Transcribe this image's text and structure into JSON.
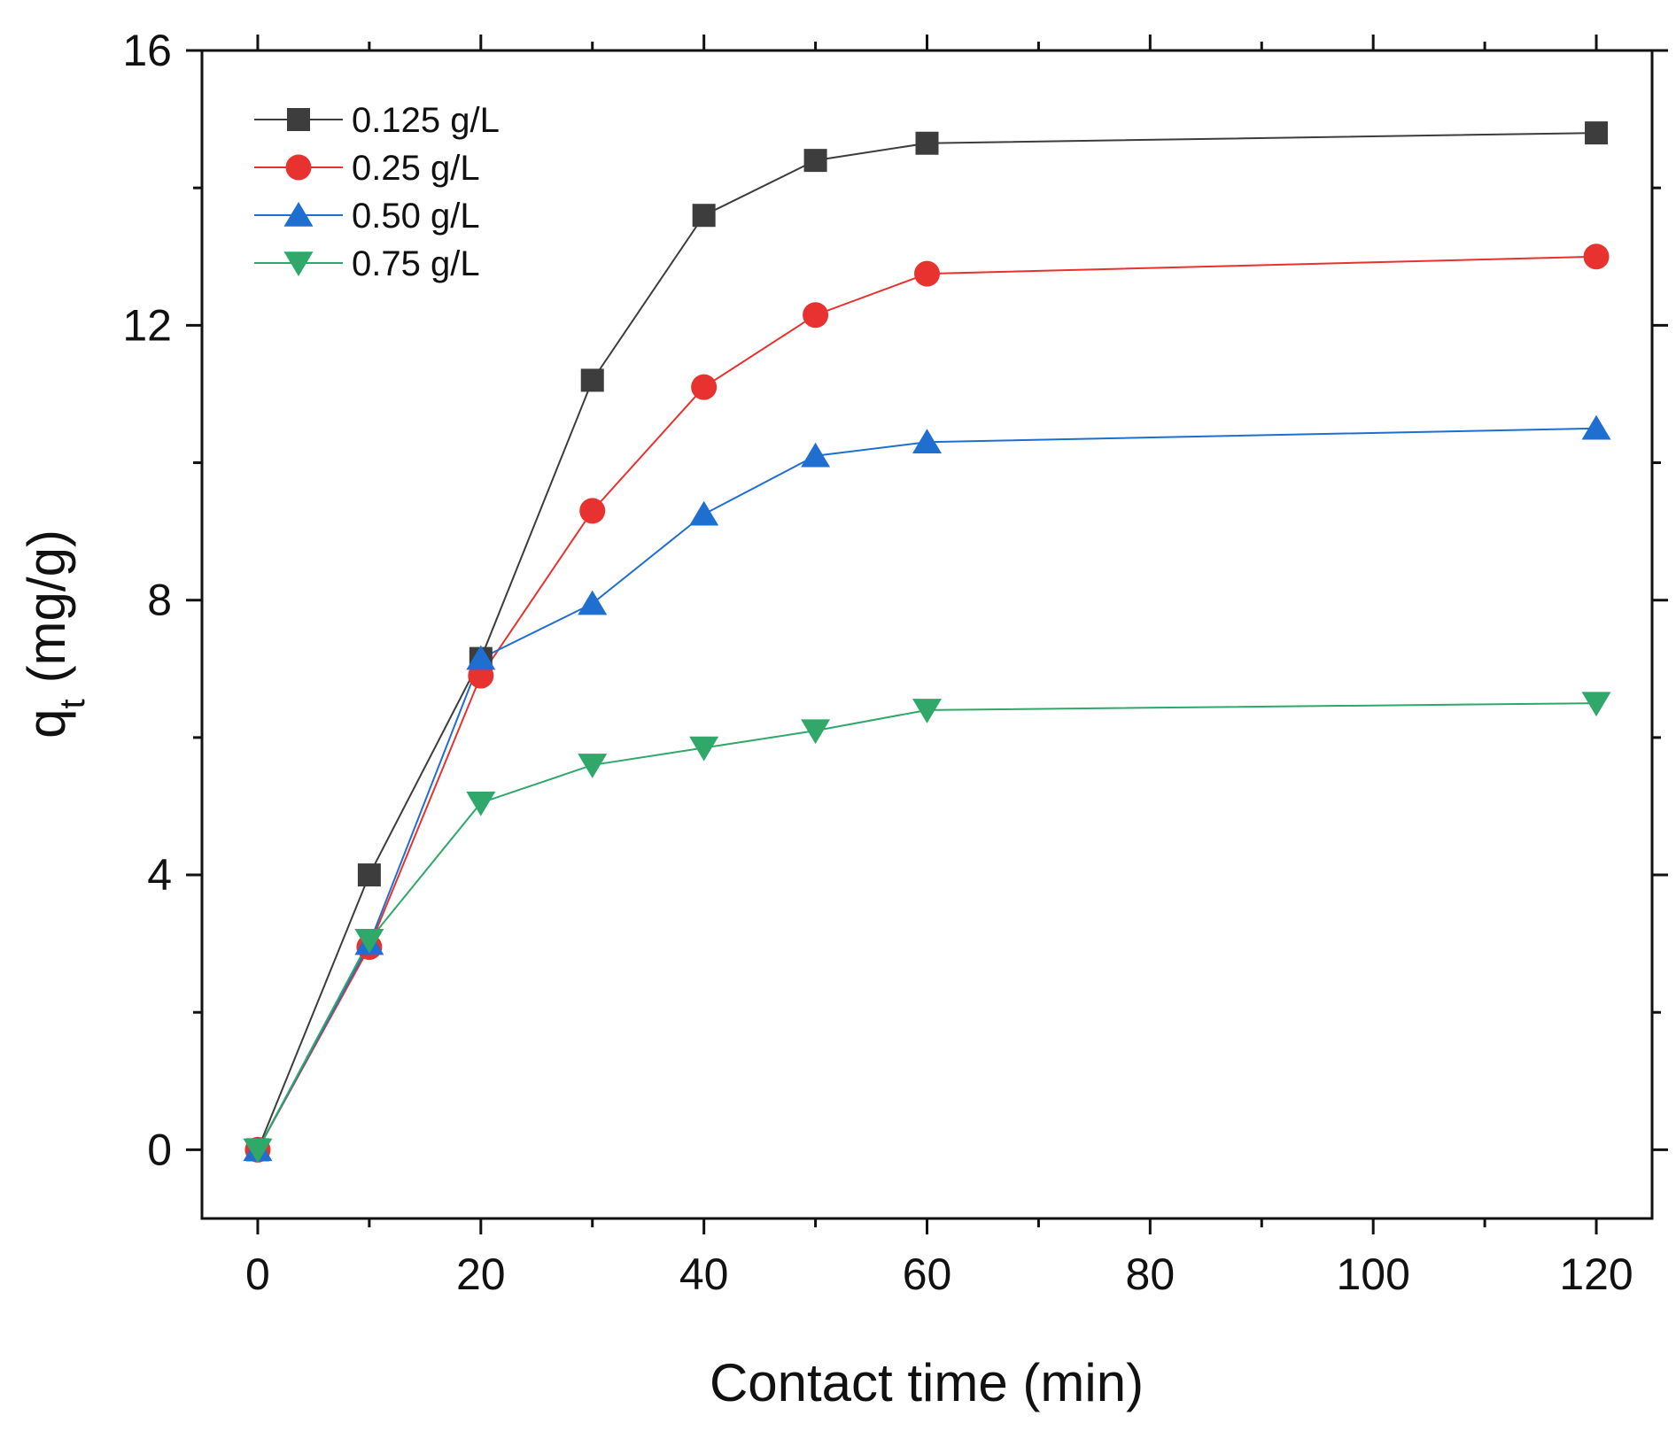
{
  "chart_data": {
    "type": "line",
    "title": "",
    "xlabel": "Contact time (min)",
    "ylabel_main": "q",
    "ylabel_sub": "t",
    "ylabel_unit": "(mg/g)",
    "xlim": [
      -5,
      125
    ],
    "ylim": [
      -1,
      16
    ],
    "x_ticks": [
      0,
      20,
      40,
      60,
      80,
      100,
      120
    ],
    "x_tick_labels": [
      "0",
      "20",
      "40",
      "60",
      "80",
      "100",
      "120"
    ],
    "y_ticks": [
      0,
      4,
      8,
      12,
      16
    ],
    "y_tick_labels": [
      "0",
      "4",
      "8",
      "12",
      "16"
    ],
    "x_minor_ticks": [
      10,
      30,
      50,
      70,
      90,
      110
    ],
    "y_minor_ticks": [
      2,
      6,
      10,
      14
    ],
    "grid": false,
    "legend_position": "top-left",
    "x": [
      0,
      10,
      20,
      30,
      40,
      50,
      60,
      120
    ],
    "series": [
      {
        "name": "0.125 g/L",
        "marker": "square",
        "color": "#3d3d3d",
        "values": [
          0,
          4.0,
          7.15,
          11.2,
          13.6,
          14.4,
          14.65,
          14.8
        ]
      },
      {
        "name": "0.25 g/L",
        "marker": "circle",
        "color": "#e8322f",
        "values": [
          0,
          2.95,
          6.9,
          9.3,
          11.1,
          12.15,
          12.75,
          13.0
        ]
      },
      {
        "name": "0.50 g/L",
        "marker": "triangle-up",
        "color": "#1f6fd1",
        "values": [
          0,
          3.0,
          7.15,
          7.95,
          9.25,
          10.1,
          10.3,
          10.5
        ]
      },
      {
        "name": "0.75 g/L",
        "marker": "triangle-down",
        "color": "#2fa86a",
        "values": [
          0,
          3.05,
          5.05,
          5.6,
          5.85,
          6.1,
          6.4,
          6.5
        ]
      }
    ]
  }
}
